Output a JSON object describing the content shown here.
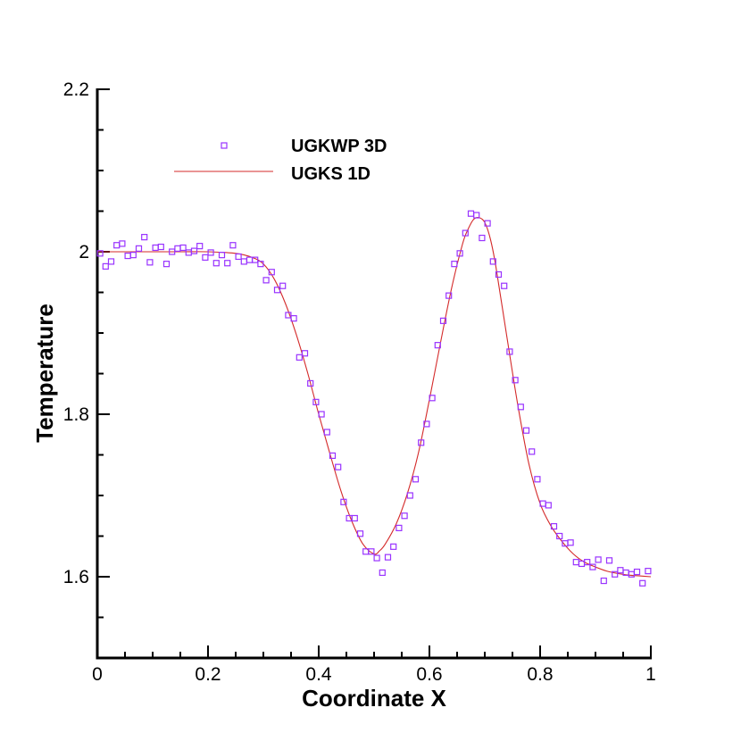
{
  "chart_data": {
    "type": "line",
    "xlabel": "Coordinate X",
    "ylabel": "Temperature",
    "xlim": [
      0,
      1
    ],
    "ylim": [
      1.5,
      2.2
    ],
    "x_ticks": [
      0,
      0.2,
      0.4,
      0.6,
      0.8,
      1
    ],
    "x_tick_labels": [
      "0",
      "0.2",
      "0.4",
      "0.6",
      "0.8",
      "1"
    ],
    "y_ticks": [
      1.6,
      1.8,
      2.0,
      2.2
    ],
    "y_tick_labels": [
      "1.6",
      "1.8",
      "2",
      "2.2"
    ],
    "grid": false,
    "legend_position": "top-left",
    "series": [
      {
        "name": "UGKWP 3D",
        "style": "square-markers",
        "color": "#9933ff",
        "x": [
          0.005,
          0.015,
          0.025,
          0.035,
          0.045,
          0.055,
          0.065,
          0.075,
          0.085,
          0.095,
          0.105,
          0.115,
          0.125,
          0.135,
          0.145,
          0.155,
          0.165,
          0.175,
          0.185,
          0.195,
          0.205,
          0.215,
          0.225,
          0.235,
          0.245,
          0.255,
          0.265,
          0.275,
          0.285,
          0.295,
          0.305,
          0.315,
          0.325,
          0.335,
          0.345,
          0.355,
          0.365,
          0.375,
          0.385,
          0.395,
          0.405,
          0.415,
          0.425,
          0.435,
          0.445,
          0.455,
          0.465,
          0.475,
          0.485,
          0.495,
          0.505,
          0.515,
          0.525,
          0.535,
          0.545,
          0.555,
          0.565,
          0.575,
          0.585,
          0.595,
          0.605,
          0.615,
          0.625,
          0.635,
          0.645,
          0.655,
          0.665,
          0.675,
          0.685,
          0.695,
          0.705,
          0.715,
          0.725,
          0.735,
          0.745,
          0.755,
          0.765,
          0.775,
          0.785,
          0.795,
          0.805,
          0.815,
          0.825,
          0.835,
          0.845,
          0.855,
          0.865,
          0.875,
          0.885,
          0.895,
          0.905,
          0.915,
          0.925,
          0.935,
          0.945,
          0.955,
          0.965,
          0.975,
          0.985,
          0.995
        ],
        "y": [
          1.998,
          1.982,
          1.988,
          2.008,
          2.01,
          1.995,
          1.996,
          2.004,
          2.018,
          1.987,
          2.005,
          2.006,
          1.985,
          2.0,
          2.004,
          2.005,
          1.999,
          2.001,
          2.007,
          1.993,
          1.999,
          1.986,
          1.996,
          1.986,
          2.008,
          1.994,
          1.988,
          1.99,
          1.99,
          1.985,
          1.965,
          1.975,
          1.953,
          1.958,
          1.922,
          1.918,
          1.87,
          1.875,
          1.838,
          1.815,
          1.8,
          1.778,
          1.749,
          1.735,
          1.692,
          1.672,
          1.672,
          1.653,
          1.631,
          1.631,
          1.623,
          1.605,
          1.624,
          1.637,
          1.66,
          1.675,
          1.7,
          1.72,
          1.765,
          1.788,
          1.82,
          1.885,
          1.915,
          1.946,
          1.985,
          1.998,
          2.023,
          2.047,
          2.045,
          2.017,
          2.035,
          1.988,
          1.972,
          1.958,
          1.877,
          1.842,
          1.809,
          1.78,
          1.754,
          1.72,
          1.69,
          1.688,
          1.662,
          1.65,
          1.641,
          1.642,
          1.618,
          1.616,
          1.618,
          1.612,
          1.621,
          1.595,
          1.62,
          1.603,
          1.608,
          1.605,
          1.603,
          1.606,
          1.592,
          1.607
        ]
      },
      {
        "name": "UGKS 1D",
        "style": "line",
        "color": "#d42a2a",
        "x": [
          0,
          0.05,
          0.1,
          0.15,
          0.2,
          0.25,
          0.28,
          0.3,
          0.32,
          0.34,
          0.36,
          0.38,
          0.4,
          0.42,
          0.44,
          0.46,
          0.48,
          0.5,
          0.51,
          0.52,
          0.54,
          0.56,
          0.58,
          0.6,
          0.62,
          0.64,
          0.66,
          0.67,
          0.68,
          0.69,
          0.7,
          0.71,
          0.72,
          0.74,
          0.76,
          0.78,
          0.8,
          0.82,
          0.84,
          0.86,
          0.88,
          0.9,
          0.92,
          0.94,
          0.96,
          0.98,
          1
        ],
        "y": [
          2.0,
          2.0,
          2.0,
          2.0,
          2.0,
          1.998,
          1.993,
          1.985,
          1.966,
          1.936,
          1.897,
          1.851,
          1.8,
          1.752,
          1.706,
          1.668,
          1.64,
          1.628,
          1.632,
          1.64,
          1.665,
          1.702,
          1.752,
          1.818,
          1.888,
          1.955,
          2.01,
          2.028,
          2.04,
          2.042,
          2.036,
          2.016,
          1.982,
          1.895,
          1.81,
          1.738,
          1.69,
          1.662,
          1.643,
          1.628,
          1.618,
          1.612,
          1.607,
          1.604,
          1.602,
          1.601,
          1.6
        ]
      }
    ]
  }
}
